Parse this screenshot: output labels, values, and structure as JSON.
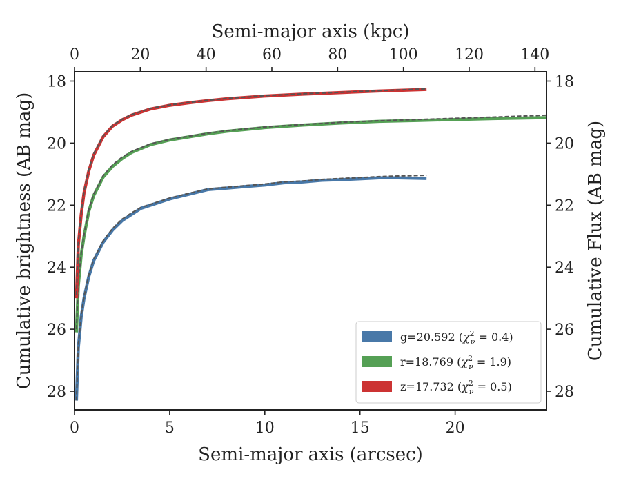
{
  "chart_data": {
    "type": "line",
    "xlabel": "Semi-major axis (arcsec)",
    "ylabel": "Cumulative brightness (AB mag)",
    "x2label": "Semi-major axis (kpc)",
    "y2label": "Cumulative Flux (AB mag)",
    "xlim": [
      0,
      24.8
    ],
    "ylim": [
      28.6,
      17.7
    ],
    "x2lim": [
      0,
      143.5
    ],
    "xticks": [
      0,
      5,
      10,
      15,
      20
    ],
    "x2ticks": [
      0,
      20,
      40,
      60,
      80,
      100,
      120,
      140
    ],
    "yticks": [
      18,
      20,
      22,
      24,
      26,
      28
    ],
    "y_inverted": true,
    "grid": false,
    "legend_position": "lower-right",
    "model_line_style": "dashed-gray",
    "series": [
      {
        "name": "g=20.592 (χ²ν = 0.4)",
        "legend_prefix": "g=20.592 (",
        "legend_chi": "χ",
        "legend_sup": "2",
        "legend_sub": "ν",
        "legend_suffix": " = 0.4)",
        "color": "#4878a8",
        "x": [
          0.1,
          0.2,
          0.35,
          0.5,
          0.75,
          1.0,
          1.5,
          2.0,
          2.5,
          3.0,
          3.5,
          4.0,
          5.0,
          6.0,
          7.0,
          8.0,
          9.0,
          10.0,
          11.0,
          12.0,
          13.0,
          14.0,
          15.0,
          16.0,
          17.0,
          18.5
        ],
        "y": [
          28.3,
          26.6,
          25.6,
          25.0,
          24.3,
          23.8,
          23.2,
          22.8,
          22.5,
          22.3,
          22.1,
          22.0,
          21.8,
          21.65,
          21.5,
          21.45,
          21.4,
          21.35,
          21.28,
          21.25,
          21.2,
          21.18,
          21.15,
          21.12,
          21.12,
          21.14
        ],
        "model_y": [
          28.3,
          26.5,
          25.55,
          24.95,
          24.25,
          23.75,
          23.15,
          22.75,
          22.45,
          22.25,
          22.07,
          21.97,
          21.77,
          21.62,
          21.48,
          21.42,
          21.37,
          21.32,
          21.25,
          21.22,
          21.17,
          21.14,
          21.11,
          21.08,
          21.06,
          21.04
        ]
      },
      {
        "name": "r=18.769 (χ²ν = 1.9)",
        "legend_prefix": "r=18.769 (",
        "legend_chi": "χ",
        "legend_sup": "2",
        "legend_sub": "ν",
        "legend_suffix": " = 1.9)",
        "color": "#55a055",
        "x": [
          0.1,
          0.2,
          0.35,
          0.5,
          0.75,
          1.0,
          1.5,
          2.0,
          2.5,
          3.0,
          4.0,
          5.0,
          6.0,
          7.0,
          8.0,
          10.0,
          12.0,
          14.0,
          16.0,
          18.0,
          20.0,
          22.0,
          24.8
        ],
        "y": [
          26.1,
          24.6,
          23.6,
          23.0,
          22.2,
          21.7,
          21.1,
          20.75,
          20.5,
          20.3,
          20.05,
          19.9,
          19.8,
          19.7,
          19.62,
          19.5,
          19.42,
          19.35,
          19.3,
          19.27,
          19.24,
          19.21,
          19.18
        ],
        "model_y": [
          26.0,
          24.5,
          23.55,
          22.95,
          22.15,
          21.65,
          21.05,
          20.7,
          20.45,
          20.27,
          20.02,
          19.88,
          19.78,
          19.68,
          19.6,
          19.48,
          19.4,
          19.33,
          19.28,
          19.24,
          19.2,
          19.16,
          19.1
        ]
      },
      {
        "name": "z=17.732 (χ²ν = 0.5)",
        "legend_prefix": "z=17.732 (",
        "legend_chi": "χ",
        "legend_sup": "2",
        "legend_sub": "ν",
        "legend_suffix": " = 0.5)",
        "color": "#cc3333",
        "x": [
          0.1,
          0.2,
          0.35,
          0.5,
          0.75,
          1.0,
          1.5,
          2.0,
          2.5,
          3.0,
          4.0,
          5.0,
          6.0,
          7.0,
          8.0,
          10.0,
          12.0,
          14.0,
          16.0,
          18.5
        ],
        "y": [
          25.0,
          23.3,
          22.3,
          21.6,
          20.9,
          20.4,
          19.8,
          19.45,
          19.25,
          19.1,
          18.9,
          18.78,
          18.7,
          18.63,
          18.57,
          18.48,
          18.42,
          18.37,
          18.32,
          18.27
        ],
        "model_y": [
          24.9,
          23.2,
          22.25,
          21.55,
          20.85,
          20.35,
          19.77,
          19.43,
          19.23,
          19.08,
          18.88,
          18.77,
          18.69,
          18.62,
          18.56,
          18.47,
          18.41,
          18.36,
          18.31,
          18.25
        ]
      }
    ]
  }
}
